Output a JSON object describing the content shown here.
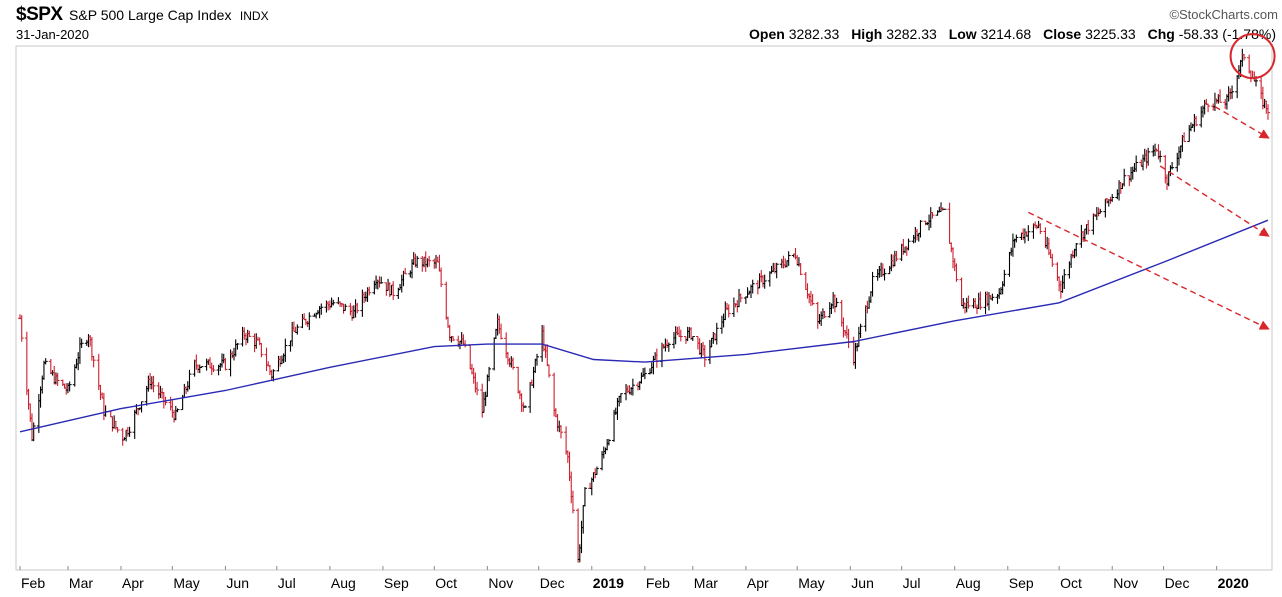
{
  "header": {
    "symbol": "$SPX",
    "index_name": "S&P 500 Large Cap Index",
    "exchange": "INDX",
    "date": "31-Jan-2020",
    "brand": "©StockCharts.com"
  },
  "quote": {
    "open_label": "Open",
    "open": "3282.33",
    "high_label": "High",
    "high": "3282.33",
    "low_label": "Low",
    "low": "3214.68",
    "close_label": "Close",
    "close": "3225.33",
    "chg_label": "Chg",
    "chg": "-58.33 (-1.78",
    "chg_suffix": "%)"
  },
  "colors": {
    "up": "#000000",
    "down": "#cc1f2e",
    "ma": "#2a2ab5",
    "annotation": "#d9262a",
    "frame": "#c8c8c8"
  },
  "chart_data": {
    "type": "line",
    "title": "$SPX S&P 500 Large Cap Index",
    "x_tick_labels": [
      "Feb",
      "Mar",
      "Apr",
      "May",
      "Jun",
      "Jul",
      "Aug",
      "Sep",
      "Oct",
      "Nov",
      "Dec",
      "2019",
      "Feb",
      "Mar",
      "Apr",
      "May",
      "Jun",
      "Jul",
      "Aug",
      "Sep",
      "Oct",
      "Nov",
      "Dec",
      "2020"
    ],
    "x_tick_bold": [
      false,
      false,
      false,
      false,
      false,
      false,
      false,
      false,
      false,
      false,
      false,
      true,
      false,
      false,
      false,
      false,
      false,
      false,
      false,
      false,
      false,
      false,
      false,
      true
    ],
    "x_tick_dates": [
      "2018-02-01",
      "2018-03-01",
      "2018-04-01",
      "2018-05-01",
      "2018-06-01",
      "2018-07-01",
      "2018-08-01",
      "2018-09-01",
      "2018-10-01",
      "2018-11-01",
      "2018-12-01",
      "2019-01-01",
      "2019-02-01",
      "2019-03-01",
      "2019-04-01",
      "2019-05-01",
      "2019-06-01",
      "2019-07-01",
      "2019-08-01",
      "2019-09-01",
      "2019-10-01",
      "2019-11-01",
      "2019-12-01",
      "2020-01-01"
    ],
    "x_range": [
      "2018-02-01",
      "2020-01-31"
    ],
    "y_range": [
      2340,
      3330
    ],
    "grid": false,
    "price_series": {
      "name": "$SPX",
      "points": [
        [
          "2018-02-01",
          2820
        ],
        [
          "2018-02-08",
          2590
        ],
        [
          "2018-02-15",
          2730
        ],
        [
          "2018-02-22",
          2700
        ],
        [
          "2018-03-01",
          2680
        ],
        [
          "2018-03-08",
          2760
        ],
        [
          "2018-03-13",
          2790
        ],
        [
          "2018-03-22",
          2640
        ],
        [
          "2018-04-02",
          2590
        ],
        [
          "2018-04-06",
          2610
        ],
        [
          "2018-04-18",
          2700
        ],
        [
          "2018-04-26",
          2660
        ],
        [
          "2018-05-03",
          2630
        ],
        [
          "2018-05-14",
          2730
        ],
        [
          "2018-05-22",
          2730
        ],
        [
          "2018-06-01",
          2730
        ],
        [
          "2018-06-12",
          2790
        ],
        [
          "2018-06-20",
          2770
        ],
        [
          "2018-06-28",
          2710
        ],
        [
          "2018-07-10",
          2790
        ],
        [
          "2018-07-25",
          2840
        ],
        [
          "2018-08-03",
          2850
        ],
        [
          "2018-08-15",
          2830
        ],
        [
          "2018-08-28",
          2900
        ],
        [
          "2018-09-07",
          2870
        ],
        [
          "2018-09-20",
          2930
        ],
        [
          "2018-10-03",
          2925
        ],
        [
          "2018-10-10",
          2790
        ],
        [
          "2018-10-18",
          2770
        ],
        [
          "2018-10-29",
          2640
        ],
        [
          "2018-11-07",
          2810
        ],
        [
          "2018-11-15",
          2730
        ],
        [
          "2018-11-23",
          2640
        ],
        [
          "2018-12-03",
          2790
        ],
        [
          "2018-12-10",
          2640
        ],
        [
          "2018-12-18",
          2550
        ],
        [
          "2018-12-24",
          2350
        ],
        [
          "2018-12-28",
          2480
        ],
        [
          "2019-01-07",
          2550
        ],
        [
          "2019-01-18",
          2670
        ],
        [
          "2019-02-01",
          2710
        ],
        [
          "2019-02-15",
          2780
        ],
        [
          "2019-02-28",
          2790
        ],
        [
          "2019-03-08",
          2745
        ],
        [
          "2019-03-20",
          2830
        ],
        [
          "2019-04-01",
          2870
        ],
        [
          "2019-04-15",
          2905
        ],
        [
          "2019-04-30",
          2945
        ],
        [
          "2019-05-13",
          2810
        ],
        [
          "2019-05-22",
          2860
        ],
        [
          "2019-06-03",
          2745
        ],
        [
          "2019-06-14",
          2890
        ],
        [
          "2019-06-28",
          2940
        ],
        [
          "2019-07-15",
          3010
        ],
        [
          "2019-07-26",
          3025
        ],
        [
          "2019-08-05",
          2845
        ],
        [
          "2019-08-15",
          2850
        ],
        [
          "2019-08-27",
          2870
        ],
        [
          "2019-09-05",
          2975
        ],
        [
          "2019-09-19",
          3000
        ],
        [
          "2019-10-02",
          2880
        ],
        [
          "2019-10-11",
          2970
        ],
        [
          "2019-10-28",
          3040
        ],
        [
          "2019-11-08",
          3090
        ],
        [
          "2019-11-27",
          3150
        ],
        [
          "2019-12-03",
          3090
        ],
        [
          "2019-12-13",
          3170
        ],
        [
          "2019-12-27",
          3240
        ],
        [
          "2020-01-07",
          3240
        ],
        [
          "2020-01-17",
          3330
        ],
        [
          "2020-01-27",
          3245
        ],
        [
          "2020-01-31",
          3225
        ]
      ]
    },
    "moving_average": {
      "points": [
        [
          "2018-02-01",
          2600
        ],
        [
          "2018-04-01",
          2645
        ],
        [
          "2018-06-01",
          2680
        ],
        [
          "2018-08-01",
          2725
        ],
        [
          "2018-10-01",
          2765
        ],
        [
          "2018-11-01",
          2770
        ],
        [
          "2018-12-03",
          2770
        ],
        [
          "2019-01-02",
          2740
        ],
        [
          "2019-02-01",
          2735
        ],
        [
          "2019-04-01",
          2750
        ],
        [
          "2019-06-03",
          2775
        ],
        [
          "2019-08-01",
          2815
        ],
        [
          "2019-10-01",
          2850
        ],
        [
          "2019-12-02",
          2930
        ],
        [
          "2020-01-31",
          3010
        ]
      ]
    },
    "annotations": {
      "circle_at": [
        "2020-01-22",
        3320
      ],
      "trend_arrows": [
        {
          "from": [
            "2019-09-13",
            3025
          ],
          "to": [
            "2020-01-31",
            2800
          ]
        },
        {
          "from": [
            "2019-11-29",
            3115
          ],
          "to": [
            "2020-01-31",
            2980
          ]
        },
        {
          "from": [
            "2019-12-31",
            3230
          ],
          "to": [
            "2020-01-31",
            3170
          ]
        }
      ]
    }
  }
}
